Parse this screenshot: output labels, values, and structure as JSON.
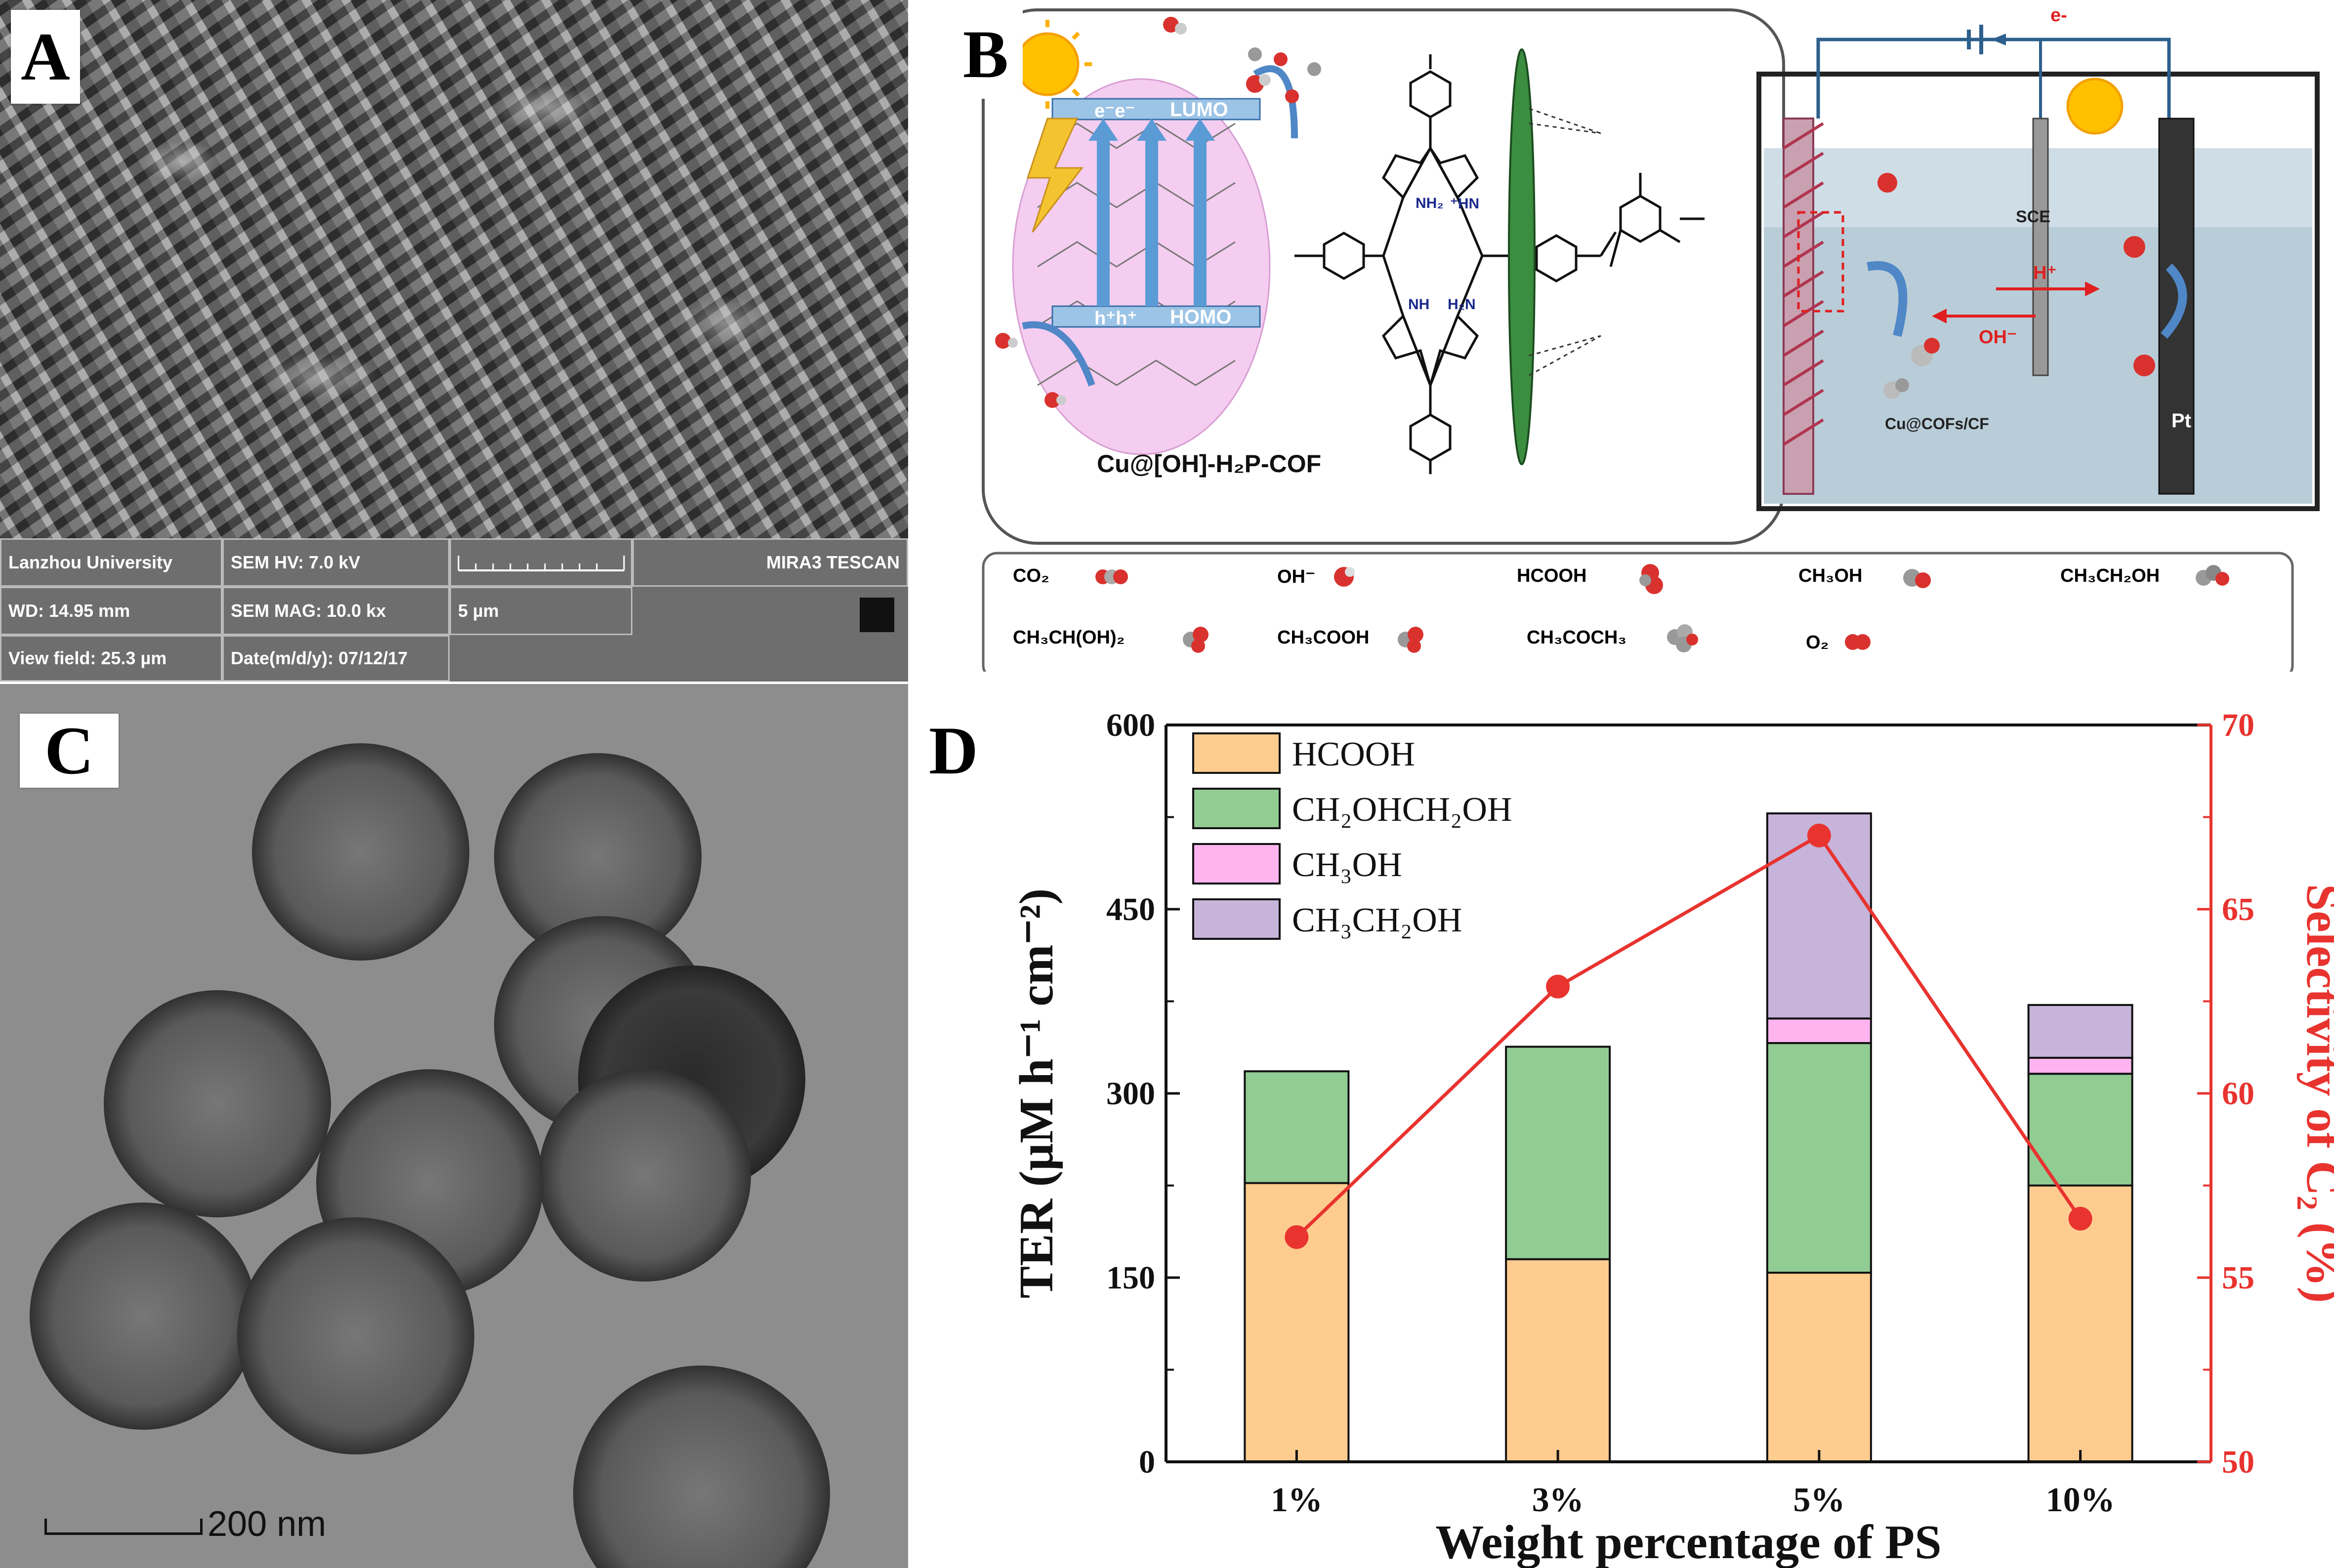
{
  "panels": {
    "a": {
      "label": "A",
      "sem": {
        "institution": "Lanzhou University",
        "hv": "SEM HV: 7.0 kV",
        "wd": "WD: 14.95 mm",
        "mag": "SEM MAG: 10.0 kx",
        "viewfield": "View field: 25.3 µm",
        "date": "Date(m/d/y): 07/12/17",
        "scale": "5 µm",
        "maker": "MIRA3 TESCAN"
      }
    },
    "b": {
      "label": "B",
      "lumo": "LUMO",
      "homo": "HOMO",
      "electrons": "e⁻e⁻",
      "holes": "h⁺h⁺",
      "cof_name": "Cu@[OH]-H₂P-COF",
      "nh2": "NH₂",
      "hn": "⁺HN",
      "nh": "NH",
      "h2n": "H₂N",
      "cell_electron": "e-",
      "sce": "SCE",
      "hplus": "H⁺",
      "ohminus": "OH⁻",
      "electrode": "Cu@COFs/CF",
      "pt": "Pt",
      "legend": [
        {
          "text": "CO₂",
          "icon": "co2-molecule-icon"
        },
        {
          "text": "OH⁻",
          "icon": "hydroxide-molecule-icon"
        },
        {
          "text": "HCOOH",
          "icon": "formic-acid-molecule-icon"
        },
        {
          "text": "CH₃OH",
          "icon": "methanol-molecule-icon"
        },
        {
          "text": "CH₃CH₂OH",
          "icon": "ethanol-molecule-icon"
        },
        {
          "text": "CH₃CH(OH)₂",
          "icon": "ethanediol-molecule-icon"
        },
        {
          "text": "CH₃COOH",
          "icon": "acetic-acid-molecule-icon"
        },
        {
          "text": "CH₃COCH₃",
          "icon": "acetone-molecule-icon"
        },
        {
          "text": "O₂",
          "icon": "oxygen-molecule-icon"
        }
      ]
    },
    "c": {
      "label": "C",
      "scale": "200 nm"
    },
    "d": {
      "label": "D"
    }
  },
  "chart_data": {
    "type": "bar",
    "stacked": true,
    "categories": [
      "1%",
      "3%",
      "5%",
      "10%"
    ],
    "series": [
      {
        "name": "HCOOH",
        "color": "#ffcc8f",
        "values": [
          227,
          165,
          154,
          225
        ]
      },
      {
        "name": "CH₂OHCH₂OH",
        "color": "#91cc93",
        "values": [
          91,
          173,
          187,
          91
        ]
      },
      {
        "name": "CH₃OH",
        "color": "#ffb4f0",
        "values": [
          0,
          0,
          20,
          13
        ]
      },
      {
        "name": "CH₃CH₂OH",
        "color": "#c6b4da",
        "values": [
          0,
          0,
          167,
          43
        ]
      }
    ],
    "line": {
      "values": [
        56.1,
        62.9,
        67.0,
        56.6
      ],
      "color": "#e8332f"
    },
    "xlabel": "Weight percentage of PS",
    "ylabel": "TER (μM h⁻¹ cm⁻²)",
    "ylabel_right": "Selectivity of C₂ (%)",
    "ylim": [
      0,
      600
    ],
    "yticks": [
      "0",
      "150",
      "300",
      "450",
      "600"
    ],
    "ylim_right": [
      50,
      70
    ],
    "yticks_right": [
      "50",
      "55",
      "60",
      "65",
      "70"
    ],
    "legend_position": "top-left",
    "grid": false
  }
}
